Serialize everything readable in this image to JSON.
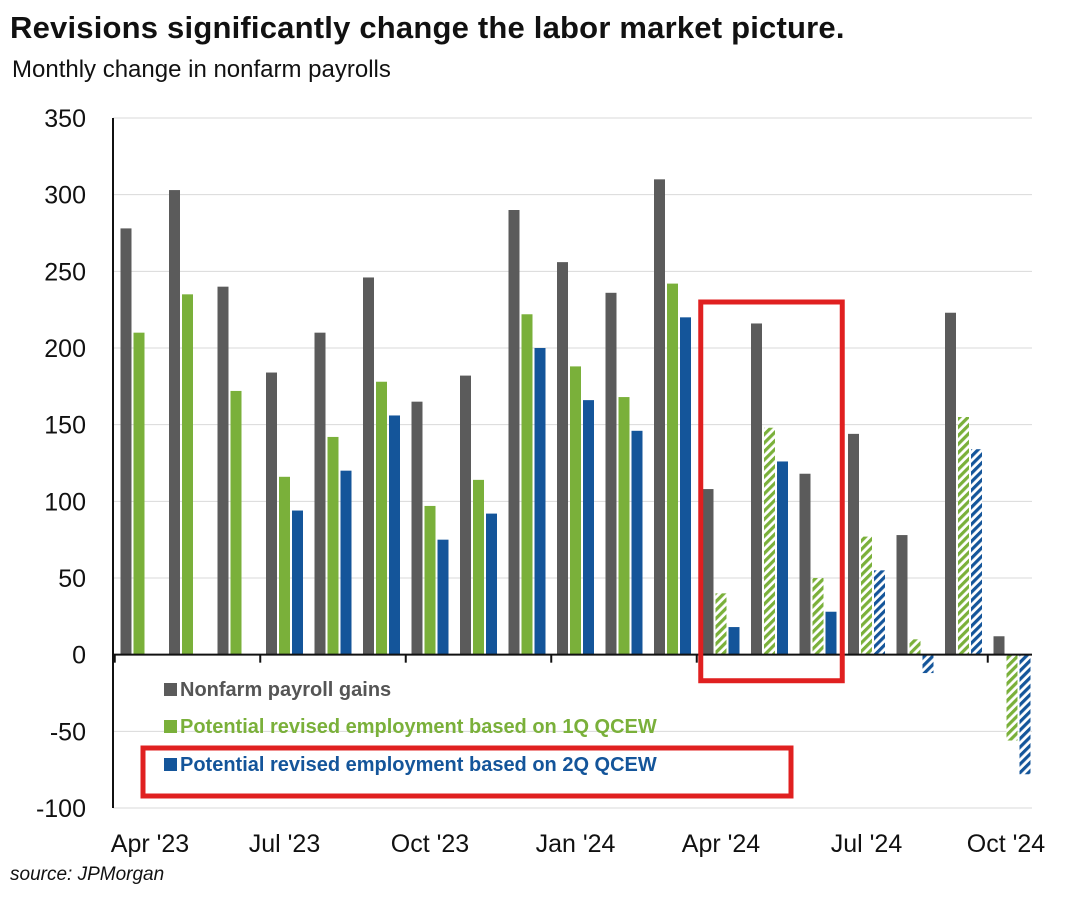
{
  "title": "Revisions significantly change the labor market picture.",
  "subtitle": "Monthly change in nonfarm payrolls",
  "source": "source: JPMorgan",
  "chart_data": {
    "type": "bar",
    "title": "Revisions significantly change the labor market picture.",
    "subtitle": "Monthly change in nonfarm payrolls",
    "ylim": [
      -100,
      350
    ],
    "yticks": [
      -100,
      -50,
      0,
      50,
      100,
      150,
      200,
      250,
      300,
      350
    ],
    "grid": true,
    "legend_position": "bottom-left",
    "categories": [
      "Apr '23",
      "May '23",
      "Jun '23",
      "Jul '23",
      "Aug '23",
      "Sep '23",
      "Oct '23",
      "Nov '23",
      "Dec '23",
      "Jan '24",
      "Feb '24",
      "Mar '24",
      "Apr '24",
      "May '24",
      "Jun '24",
      "Jul '24",
      "Aug '24",
      "Sep '24",
      "Oct '24"
    ],
    "xtick_labels": [
      "Apr '23",
      "Jul '23",
      "Oct '23",
      "Jan '24",
      "Apr '24",
      "Jul '24",
      "Oct '24"
    ],
    "xtick_indices": [
      0,
      3,
      6,
      9,
      12,
      15,
      18
    ],
    "series": [
      {
        "name": "Nonfarm payroll gains",
        "color": "#5b5b5b",
        "values": [
          278,
          303,
          240,
          184,
          210,
          246,
          165,
          182,
          290,
          256,
          236,
          310,
          108,
          216,
          118,
          144,
          78,
          223,
          12
        ]
      },
      {
        "name": "Potential revised employment based on 1Q QCEW",
        "color": "#7ab03a",
        "values": [
          210,
          235,
          172,
          116,
          142,
          178,
          97,
          114,
          222,
          188,
          168,
          242,
          40,
          148,
          50,
          77,
          10,
          155,
          -56
        ],
        "hatched_from_index": 12
      },
      {
        "name": "Potential revised employment based on 2Q QCEW",
        "color": "#14559a",
        "values": [
          null,
          null,
          null,
          94,
          120,
          156,
          75,
          92,
          200,
          166,
          146,
          220,
          18,
          126,
          28,
          55,
          -12,
          134,
          -78
        ],
        "hatched_from_index": 15
      }
    ],
    "annotations": [
      {
        "type": "highlight-box",
        "color": "#e02020",
        "covers_categories": [
          "Apr '24",
          "Jun '24"
        ]
      },
      {
        "type": "highlight-box",
        "color": "#e02020",
        "covers": "legend entry: Potential revised employment based on 2Q QCEW"
      }
    ]
  }
}
